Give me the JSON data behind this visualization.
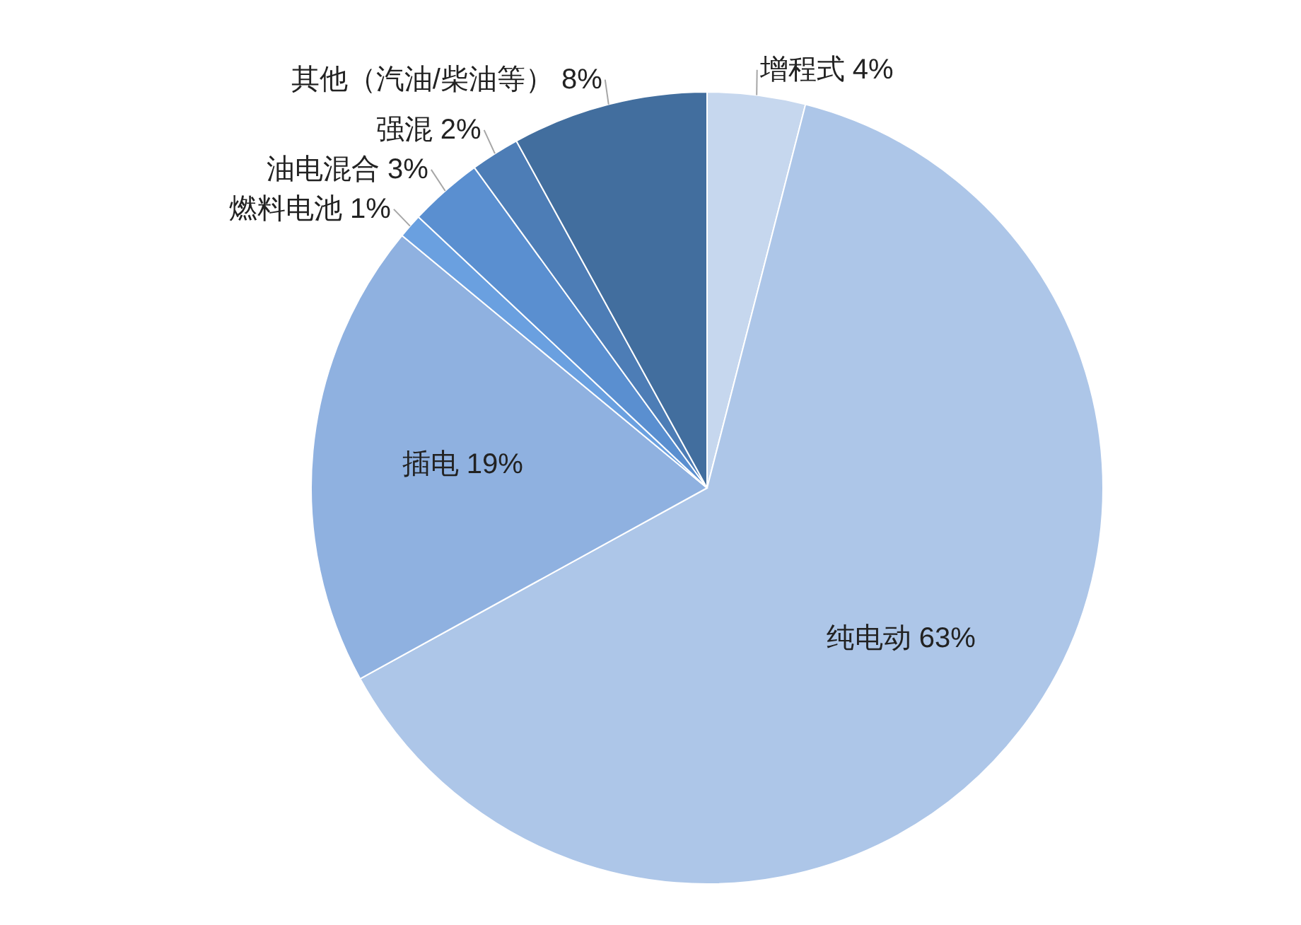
{
  "chart_data": {
    "type": "pie",
    "categories": [
      "增程式",
      "纯电动",
      "插电",
      "燃料电池",
      "油电混合",
      "强混",
      "其他（汽油/柴油等）"
    ],
    "values": [
      4,
      63,
      19,
      1,
      3,
      2,
      8
    ],
    "value_labels": [
      "4%",
      "63%",
      "19%",
      "1%",
      "3%",
      "2%",
      "8%"
    ],
    "colors": [
      "#c6d7ee",
      "#adc6e8",
      "#8fb1e0",
      "#6aa0e0",
      "#5a8fd0",
      "#4d7db6",
      "#426e9e"
    ]
  }
}
